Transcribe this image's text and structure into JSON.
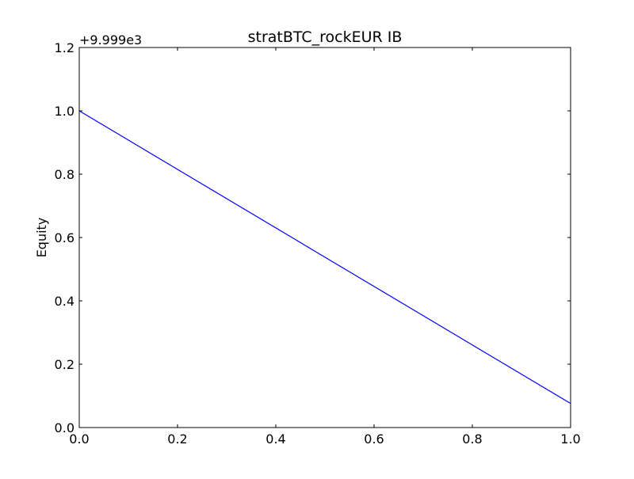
{
  "chart_data": {
    "type": "line",
    "title": "stratBTC_rockEUR IB",
    "xlabel": "",
    "ylabel": "Equity",
    "y_offset_label": "+9.999e3",
    "xlim": [
      0,
      1
    ],
    "ylim": [
      0,
      1.2
    ],
    "x_ticks": [
      "0.0",
      "0.2",
      "0.4",
      "0.6",
      "0.8",
      "1.0"
    ],
    "y_ticks": [
      "0.0",
      "0.2",
      "0.4",
      "0.6",
      "0.8",
      "1.0",
      "1.2"
    ],
    "grid": false,
    "series": [
      {
        "color": "#0000ff",
        "x": [
          0.0,
          1.0
        ],
        "y": [
          1.0,
          0.076
        ]
      }
    ]
  }
}
